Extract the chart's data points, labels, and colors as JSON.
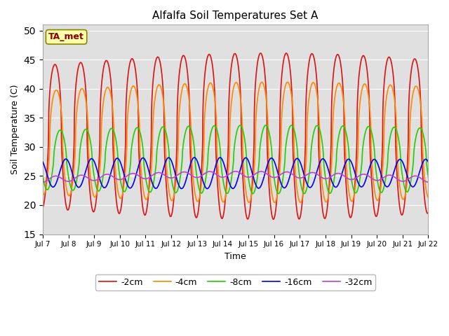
{
  "title": "Alfalfa Soil Temperatures Set A",
  "xlabel": "Time",
  "ylabel": "Soil Temperature (C)",
  "ylim": [
    15,
    51
  ],
  "xlim": [
    0,
    15
  ],
  "yticks": [
    15,
    20,
    25,
    30,
    35,
    40,
    45,
    50
  ],
  "xtick_labels": [
    "Jul 7",
    "Jul 8",
    "Jul 9",
    "Jul 10",
    "Jul 11",
    "Jul 12",
    "Jul 13",
    "Jul 14",
    "Jul 15",
    "Jul 16",
    "Jul 17",
    "Jul 18",
    "Jul 19",
    "Jul 20",
    "Jul 21",
    "Jul 22"
  ],
  "legend_labels": [
    "-2cm",
    "-4cm",
    "-8cm",
    "-16cm",
    "-32cm"
  ],
  "colors": {
    "-2cm": "#dd1111",
    "-4cm": "#ff8800",
    "-8cm": "#22cc00",
    "-16cm": "#0000ee",
    "-32cm": "#bb44cc"
  },
  "background_color": "#e0e0e0",
  "annotation_text": "TA_met",
  "annotation_bg": "#ffffaa",
  "annotation_border": "#888800",
  "annotation_text_color": "#880000"
}
